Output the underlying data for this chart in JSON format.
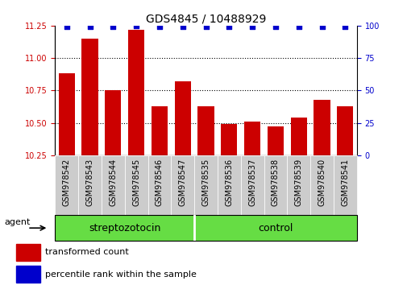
{
  "title": "GDS4845 / 10488929",
  "samples": [
    "GSM978542",
    "GSM978543",
    "GSM978544",
    "GSM978545",
    "GSM978546",
    "GSM978547",
    "GSM978535",
    "GSM978536",
    "GSM978537",
    "GSM978538",
    "GSM978539",
    "GSM978540",
    "GSM978541"
  ],
  "bar_values": [
    10.88,
    11.15,
    10.75,
    11.22,
    10.63,
    10.82,
    10.63,
    10.49,
    10.51,
    10.47,
    10.54,
    10.68,
    10.63
  ],
  "percentile_values": [
    99,
    99,
    99,
    100,
    99,
    99,
    99,
    99,
    99,
    99,
    99,
    99,
    99
  ],
  "bar_color": "#cc0000",
  "percentile_color": "#0000cc",
  "ylim_left": [
    10.25,
    11.25
  ],
  "ylim_right": [
    0,
    100
  ],
  "yticks_left": [
    10.25,
    10.5,
    10.75,
    11.0,
    11.25
  ],
  "yticks_right": [
    0,
    25,
    50,
    75,
    100
  ],
  "grid_lines": [
    10.5,
    10.75,
    11.0
  ],
  "group1_label": "streptozotocin",
  "group1_count": 6,
  "group2_label": "control",
  "group2_count": 7,
  "agent_label": "agent",
  "legend_bar_label": "transformed count",
  "legend_pct_label": "percentile rank within the sample",
  "group_bg_color": "#66dd44",
  "col_bg_color": "#cccccc",
  "title_fontsize": 10,
  "label_fontsize": 7,
  "group_fontsize": 9,
  "legend_fontsize": 8,
  "bar_width": 0.7
}
